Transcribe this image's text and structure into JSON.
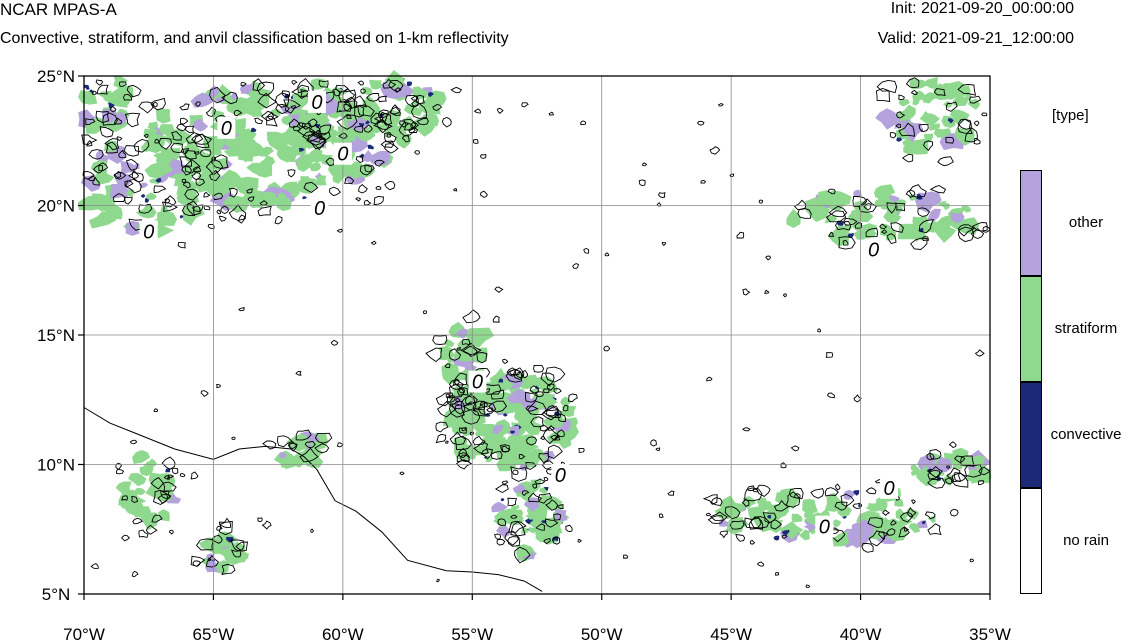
{
  "header": {
    "title": "NCAR MPAS-A",
    "subtitle": "Convective, stratiform, and anvil classification based on 1-km reflectivity",
    "init": "Init: 2021-09-20_00:00:00",
    "valid": "Valid: 2021-09-21_12:00:00"
  },
  "map": {
    "lat_range": [
      5,
      25
    ],
    "lon_range": [
      -70,
      -35
    ],
    "lat_ticks": [
      {
        "value": 25,
        "label": "25°N"
      },
      {
        "value": 20,
        "label": "20°N"
      },
      {
        "value": 15,
        "label": "15°N"
      },
      {
        "value": 10,
        "label": "10°N"
      },
      {
        "value": 5,
        "label": "5°N"
      }
    ],
    "lon_ticks": [
      {
        "value": -70,
        "label": "70°W"
      },
      {
        "value": -65,
        "label": "65°W"
      },
      {
        "value": -60,
        "label": "60°W"
      },
      {
        "value": -55,
        "label": "55°W"
      },
      {
        "value": -50,
        "label": "50°W"
      },
      {
        "value": -45,
        "label": "45°W"
      },
      {
        "value": -40,
        "label": "40°W"
      },
      {
        "value": -35,
        "label": "35°W"
      }
    ],
    "grid": true,
    "contour_label": "0",
    "contour_labels_at": [
      {
        "lon": -64.5,
        "lat": 23.0
      },
      {
        "lon": -61.0,
        "lat": 24.0
      },
      {
        "lon": -60.0,
        "lat": 22.0
      },
      {
        "lon": -60.9,
        "lat": 19.9
      },
      {
        "lon": -67.5,
        "lat": 19.0
      },
      {
        "lon": -54.8,
        "lat": 13.2
      },
      {
        "lon": -51.6,
        "lat": 9.6
      },
      {
        "lon": -39.5,
        "lat": 18.3
      },
      {
        "lon": -38.9,
        "lat": 9.1
      },
      {
        "lon": -41.4,
        "lat": 7.6
      }
    ],
    "colors": {
      "other": "#b3a2dc",
      "stratiform": "#8fd98f",
      "convective": "#1a2a78",
      "no_rain": "#ffffff"
    }
  },
  "legend": {
    "title": "[type]",
    "items": [
      {
        "label": "other",
        "color": "#b3a2dc"
      },
      {
        "label": "stratiform",
        "color": "#8fd98f"
      },
      {
        "label": "convective",
        "color": "#1a2a78"
      },
      {
        "label": "no rain",
        "color": "#ffffff"
      }
    ]
  }
}
